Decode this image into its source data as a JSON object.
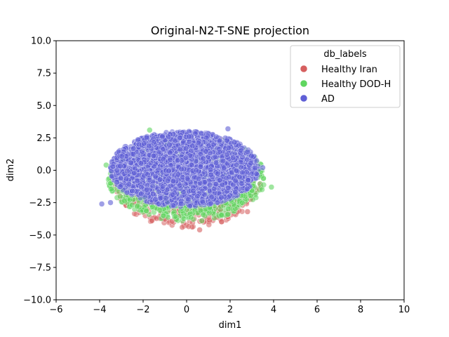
{
  "chart_data": {
    "type": "scatter",
    "title": "Original-N2-T-SNE projection",
    "xlabel": "dim1",
    "ylabel": "dim2",
    "xlim": [
      -6,
      10
    ],
    "ylim": [
      -10,
      10
    ],
    "xticks": [
      "−6",
      "−4",
      "−2",
      "0",
      "2",
      "4",
      "6",
      "8",
      "10"
    ],
    "xtick_values": [
      -6,
      -4,
      -2,
      0,
      2,
      4,
      6,
      8,
      10
    ],
    "yticks": [
      "−10.0",
      "−7.5",
      "−5.0",
      "−2.5",
      "0.0",
      "2.5",
      "5.0",
      "7.5",
      "10.0"
    ],
    "ytick_values": [
      -10,
      -7.5,
      -5,
      -2.5,
      0,
      2.5,
      5,
      7.5,
      10
    ],
    "grid": false,
    "legend": {
      "title": "db_labels",
      "placement": "upper-right",
      "entries": [
        {
          "label": "Healthy Iran",
          "color": "#d65f5f"
        },
        {
          "label": "Healthy DOD-H",
          "color": "#5fd65f"
        },
        {
          "label": "AD",
          "color": "#5f5fd6"
        }
      ]
    },
    "series": [
      {
        "name": "Healthy Iran",
        "color": "#d65f5f",
        "cluster": {
          "cx": 0.0,
          "cy": -0.8,
          "rx": 3.4,
          "ry": 3.6,
          "points": 700
        },
        "outliers": [
          [
            0.6,
            -4.6
          ],
          [
            -0.2,
            -4.4
          ],
          [
            2.8,
            -3.2
          ],
          [
            1.9,
            -3.6
          ],
          [
            -1.6,
            -3.9
          ],
          [
            3.4,
            -1.2
          ]
        ]
      },
      {
        "name": "Healthy DOD-H",
        "color": "#5fd65f",
        "cluster": {
          "cx": 0.0,
          "cy": -0.6,
          "rx": 3.6,
          "ry": 3.3,
          "points": 1200
        },
        "outliers": [
          [
            -3.7,
            0.4
          ],
          [
            -1.7,
            3.1
          ],
          [
            0.7,
            -3.9
          ],
          [
            3.9,
            -1.3
          ],
          [
            -3.5,
            -1.0
          ]
        ]
      },
      {
        "name": "AD",
        "color": "#5f5fd6",
        "cluster": {
          "cx": -0.1,
          "cy": 0.1,
          "rx": 3.4,
          "ry": 2.9,
          "points": 2600
        },
        "outliers": [
          [
            -3.9,
            -2.6
          ],
          [
            -3.5,
            -2.5
          ],
          [
            1.9,
            3.2
          ],
          [
            -2.5,
            -1.6
          ],
          [
            3.5,
            0.2
          ]
        ]
      }
    ]
  }
}
